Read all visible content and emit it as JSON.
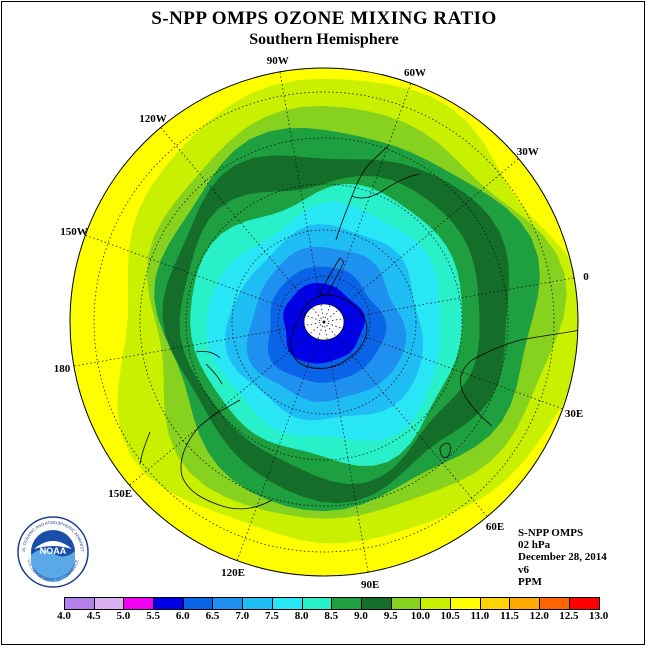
{
  "title": "S-NPP OMPS OZONE MIXING RATIO",
  "subtitle": "Southern Hemisphere",
  "longitude_labels": [
    "90W",
    "60W",
    "30W",
    "0",
    "30E",
    "60E",
    "90E",
    "120E",
    "150E",
    "180",
    "150W",
    "120W"
  ],
  "info": {
    "instrument": "S-NPP OMPS",
    "level": "02 hPa",
    "date": "December 28, 2014",
    "version": "v6",
    "units": "PPM"
  },
  "logo": {
    "text": "NOAA",
    "ring_text": "NATIONAL OCEANIC AND ATMOSPHERIC ADMINISTRATION",
    "ring_text_bottom": "U.S. DEPARTMENT OF COMMERCE"
  },
  "colorbar": {
    "labels": [
      "4.0",
      "4.5",
      "5.0",
      "5.5",
      "6.0",
      "6.5",
      "7.0",
      "7.5",
      "8.0",
      "8.5",
      "9.0",
      "9.5",
      "10.0",
      "10.5",
      "11.0",
      "11.5",
      "12.0",
      "12.5",
      "13.0"
    ],
    "colors": [
      "#b37fe8",
      "#d9b0f0",
      "#f000f0",
      "#0000e6",
      "#0a64e8",
      "#1e90f0",
      "#1ebef5",
      "#28e6f5",
      "#28f0c8",
      "#1ea040",
      "#146e2a",
      "#86d21e",
      "#c8f000",
      "#ffff00",
      "#ffd200",
      "#ffaa00",
      "#ff6400",
      "#ff0000",
      "#8b4513"
    ]
  },
  "map_fields": {
    "contour_levels": [
      {
        "range": "10.0-10.5",
        "color": "#ffff00"
      },
      {
        "range": "9.5-10.0",
        "color": "#c8f000"
      },
      {
        "range": "9.0-9.5",
        "color": "#86d21e"
      },
      {
        "range": "8.5-9.0",
        "color": "#1ea040"
      },
      {
        "range": "8.0-8.5",
        "color": "#146e2a"
      },
      {
        "range": "7.5-8.0",
        "color": "#1ea040"
      },
      {
        "range": "7.0-7.5",
        "color": "#28f0c8"
      },
      {
        "range": "6.5-7.0",
        "color": "#28e6f5"
      },
      {
        "range": "6.0-6.5",
        "color": "#1ebef5"
      },
      {
        "range": "5.5-6.0",
        "color": "#1e90f0"
      },
      {
        "range": "5.0-5.5",
        "color": "#0a64e8"
      },
      {
        "range": "<5.0",
        "color": "#0000e6"
      }
    ],
    "polar_gap_color": "#ffffff"
  }
}
